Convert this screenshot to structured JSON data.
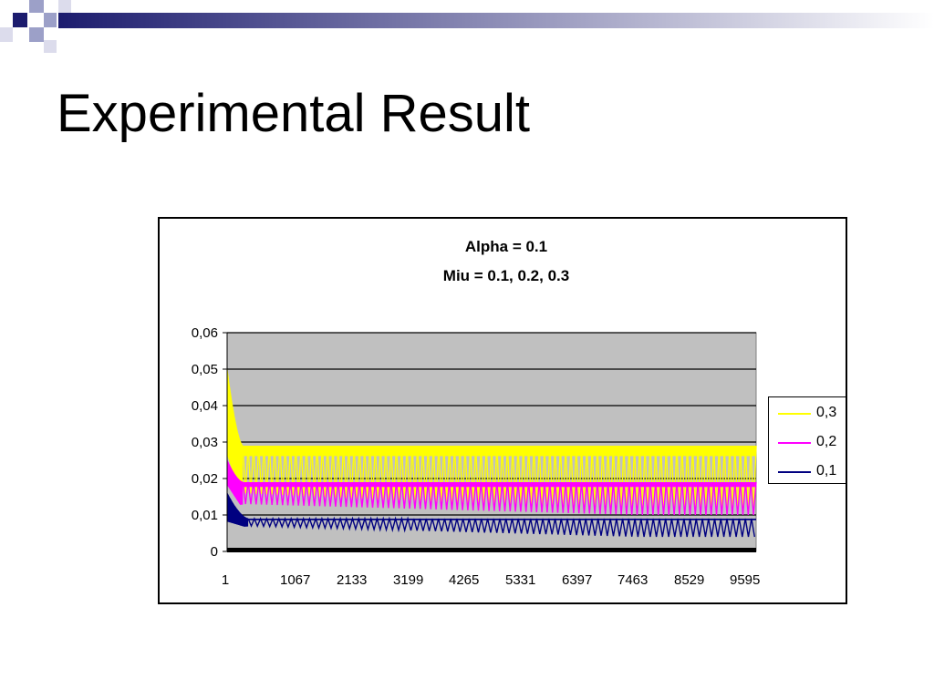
{
  "slide": {
    "title": "Experimental Result"
  },
  "colors": {
    "deco_navy": "#1c1c6e",
    "deco_light": "#9ca0c8",
    "plot_bg": "#c0c0c0"
  },
  "chart_data": {
    "type": "line",
    "title": "Alpha = 0.1",
    "subtitle": "Miu = 0.1, 0.2, 0.3",
    "xlabel": "",
    "ylabel": "",
    "ylim": [
      0,
      0.06
    ],
    "yticks": [
      "0",
      "0,01",
      "0,02",
      "0,03",
      "0,04",
      "0,05",
      "0,06"
    ],
    "xticks": [
      "1",
      "1067",
      "2133",
      "3199",
      "4265",
      "5331",
      "6397",
      "7463",
      "8529",
      "9595"
    ],
    "xlim": [
      1,
      10000
    ],
    "grid": true,
    "legend_position": "right",
    "series": [
      {
        "name": "0,3",
        "color": "#ffff00",
        "start": 0.05,
        "decay_end_x": 300,
        "upper": 0.029,
        "lower_early": 0.016,
        "lower_late": 0.011
      },
      {
        "name": "0,2",
        "color": "#ff00ff",
        "start": 0.025,
        "decay_end_x": 300,
        "upper": 0.019,
        "lower_early": 0.013,
        "lower_late": 0.01
      },
      {
        "name": "0,1",
        "color": "#000080",
        "start": 0.016,
        "decay_end_x": 400,
        "upper": 0.009,
        "lower_early": 0.007,
        "lower_late": 0.004
      }
    ]
  }
}
